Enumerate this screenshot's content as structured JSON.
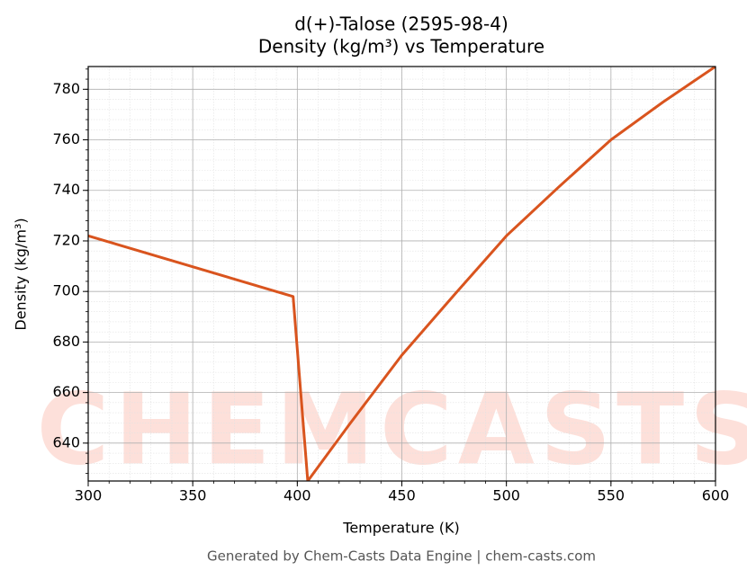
{
  "chart_data": {
    "type": "line",
    "title": "d(+)-Talose (2595-98-4)",
    "subtitle": "Density (kg/m³) vs Temperature",
    "x_label": "Temperature (K)",
    "y_label": "Density (kg/m³)",
    "footer": "Generated by Chem-Casts Data Engine | chem-casts.com",
    "watermark": "CHEMCASTS",
    "x": [
      300,
      398,
      405,
      425,
      450,
      475,
      500,
      525,
      550,
      575,
      600
    ],
    "series": [
      {
        "name": "Density",
        "color": "#d9541e",
        "values": [
          722,
          698,
          625,
          647.5,
          674.8,
          698.6,
          722,
          741.3,
          760,
          775,
          789
        ]
      }
    ],
    "xlim": [
      300,
      600
    ],
    "ylim": [
      625,
      789
    ],
    "xticks": [
      300,
      350,
      400,
      450,
      500,
      550,
      600
    ],
    "yticks": [
      640,
      660,
      680,
      700,
      720,
      740,
      760,
      780
    ],
    "grid": true
  }
}
